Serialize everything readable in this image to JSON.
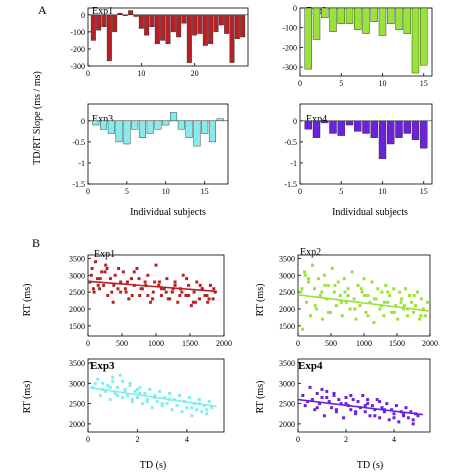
{
  "panel_labels": [
    "A",
    "B"
  ],
  "xlabels": {
    "A": "Individual subjects",
    "B": "TD (s)"
  },
  "ylabels": {
    "A": "TD/RT Slope (ms / ms)",
    "B": "RT (ms)"
  },
  "colors": {
    "Exp1": "#b82025",
    "Exp2": "#99e23a",
    "Exp3": "#88eaea",
    "Exp4": "#6a23d8"
  },
  "chart_data": [
    {
      "type": "bar",
      "panel": "A",
      "title": "Exp1",
      "color": "#b82025",
      "xlim": [
        0,
        30
      ],
      "ylim": [
        -300,
        40
      ],
      "xticks": [
        "0",
        "10",
        "20"
      ],
      "yticks": [
        "0",
        "-100",
        "-200",
        "-300"
      ],
      "x": [
        1,
        2,
        3,
        4,
        5,
        6,
        7,
        8,
        9,
        10,
        11,
        12,
        13,
        14,
        15,
        16,
        17,
        18,
        19,
        20,
        21,
        22,
        23,
        24,
        25,
        26,
        27,
        28,
        29
      ],
      "values": [
        -150,
        -90,
        -70,
        -270,
        -100,
        10,
        -5,
        25,
        -10,
        -80,
        -120,
        -70,
        -170,
        -150,
        -170,
        -100,
        -130,
        -50,
        -280,
        -120,
        -110,
        -180,
        -170,
        -100,
        -60,
        -110,
        -280,
        -140,
        -130
      ]
    },
    {
      "type": "bar",
      "panel": "A",
      "title": "Exp2",
      "color": "#99e23a",
      "xlim": [
        0,
        16
      ],
      "ylim": [
        -345,
        0
      ],
      "xticks": [
        "0",
        "5",
        "10",
        "15"
      ],
      "yticks": [
        "0",
        "-100",
        "-200",
        "-300"
      ],
      "x": [
        1,
        2,
        3,
        4,
        5,
        6,
        7,
        8,
        9,
        10,
        11,
        12,
        13,
        14,
        15
      ],
      "values": [
        -310,
        -160,
        -50,
        -120,
        -80,
        -80,
        -110,
        -130,
        -70,
        -140,
        -80,
        -110,
        -130,
        -330,
        -290
      ]
    },
    {
      "type": "bar",
      "panel": "A",
      "title": "Exp3",
      "color": "#88eaea",
      "xlim": [
        0,
        18
      ],
      "ylim": [
        -1.5,
        0.4
      ],
      "xticks": [
        "0",
        "5",
        "10",
        "15"
      ],
      "yticks": [
        "0",
        "-0.5",
        "-1",
        "-1.5"
      ],
      "x": [
        1,
        2,
        3,
        4,
        5,
        6,
        7,
        8,
        9,
        10,
        11,
        12,
        13,
        14,
        15,
        16,
        17
      ],
      "values": [
        -0.1,
        -0.2,
        -0.3,
        -0.5,
        -0.55,
        -0.2,
        -0.4,
        -0.3,
        -0.2,
        -0.1,
        0.2,
        -0.2,
        -0.4,
        -0.6,
        -0.3,
        -0.5,
        0.05
      ]
    },
    {
      "type": "bar",
      "panel": "A",
      "title": "Exp4",
      "color": "#6a23d8",
      "xlim": [
        0,
        16
      ],
      "ylim": [
        -1.5,
        0.4
      ],
      "xticks": [
        "0",
        "5",
        "10",
        "15"
      ],
      "yticks": [
        "0",
        "-0.5",
        "-1",
        "-1.5"
      ],
      "x": [
        1,
        2,
        3,
        4,
        5,
        6,
        7,
        8,
        9,
        10,
        11,
        12,
        13,
        14,
        15
      ],
      "values": [
        -0.2,
        -0.4,
        -0.05,
        -0.3,
        -0.35,
        -0.1,
        -0.25,
        -0.3,
        -0.4,
        -0.9,
        -0.55,
        -0.4,
        -0.3,
        -0.45,
        -0.65
      ]
    },
    {
      "type": "scatter",
      "panel": "B",
      "title": "Exp1",
      "color": "#b82025",
      "xlim": [
        0,
        2000
      ],
      "ylim": [
        1200,
        3600
      ],
      "xticks": [
        "0",
        "500",
        "1000",
        "1500",
        "2000"
      ],
      "yticks": [
        "1500",
        "2000",
        "2500",
        "3000",
        "3500"
      ],
      "x": [
        30,
        60,
        90,
        110,
        140,
        170,
        200,
        230,
        260,
        290,
        330,
        370,
        400,
        440,
        480,
        520,
        560,
        600,
        640,
        680,
        720,
        760,
        800,
        840,
        880,
        920,
        960,
        1000,
        1040,
        1080,
        1120,
        1160,
        1200,
        1240,
        1280,
        1320,
        1360,
        1400,
        1440,
        1480,
        1520,
        1560,
        1600,
        1640,
        1680,
        1720,
        1760,
        1800,
        1840,
        1870,
        50,
        150,
        250,
        350,
        450,
        550,
        650,
        750,
        850,
        950,
        1050,
        1150,
        1250,
        1350,
        1450,
        1550,
        1650,
        1750,
        1850,
        80,
        180,
        280,
        380,
        480,
        580,
        680,
        780,
        880,
        980,
        1080,
        1180,
        1280,
        1380,
        1480,
        1580,
        1680,
        1780
      ],
      "y": [
        2800,
        3200,
        2500,
        3400,
        2900,
        2600,
        3100,
        2700,
        3300,
        2400,
        2900,
        2200,
        3000,
        2600,
        2800,
        3100,
        2500,
        2300,
        2900,
        2700,
        3200,
        2400,
        2600,
        2800,
        3000,
        2200,
        2500,
        3300,
        2700,
        2400,
        2600,
        2900,
        2300,
        2500,
        2800,
        2200,
        2600,
        3000,
        2400,
        2700,
        2100,
        2500,
        2800,
        2300,
        2600,
        2400,
        2200,
        2700,
        2300,
        2500,
        3000,
        2700,
        3100,
        2500,
        3200,
        2600,
        2400,
        2900,
        2700,
        2300,
        2800,
        2500,
        2600,
        2400,
        2900,
        2200,
        2700,
        2400,
        2600,
        2600,
        2900,
        3200,
        2700,
        2500,
        2800,
        3100,
        2600,
        2400,
        2800,
        2600,
        2300,
        2700,
        2500,
        2400,
        2200,
        2600,
        2300
      ],
      "fit": {
        "x": [
          0,
          1900
        ],
        "y": [
          2820,
          2520
        ]
      }
    },
    {
      "type": "scatter",
      "panel": "B",
      "title": "Exp2",
      "color": "#99e23a",
      "xlim": [
        0,
        2000
      ],
      "ylim": [
        1200,
        3600
      ],
      "xticks": [
        "0",
        "500",
        "1000",
        "1500",
        "2000"
      ],
      "yticks": [
        "1500",
        "2000",
        "2500",
        "3000",
        "3500"
      ],
      "x": [
        40,
        70,
        100,
        130,
        160,
        190,
        220,
        250,
        280,
        310,
        340,
        370,
        400,
        430,
        460,
        490,
        520,
        550,
        580,
        610,
        640,
        670,
        700,
        730,
        760,
        790,
        820,
        850,
        880,
        910,
        940,
        970,
        1000,
        1030,
        1060,
        1090,
        1120,
        1150,
        1180,
        1210,
        1240,
        1270,
        1300,
        1330,
        1360,
        1390,
        1420,
        1450,
        1480,
        1510,
        1540,
        1570,
        1600,
        1630,
        1660,
        1690,
        1720,
        1750,
        1780,
        1810,
        1840,
        1870,
        1900,
        1930,
        1960,
        60,
        160,
        260,
        360,
        460,
        560,
        660,
        760,
        860,
        960,
        1060,
        1160,
        1260,
        1360,
        1460,
        1560,
        1660,
        1760,
        1860,
        110,
        410,
        710,
        1010,
        1310,
        1610
      ],
      "y": [
        2500,
        1400,
        3100,
        2200,
        2800,
        1800,
        3300,
        2600,
        2000,
        2900,
        2400,
        1700,
        3000,
        2300,
        2700,
        1900,
        3200,
        2500,
        2100,
        2800,
        2400,
        1800,
        2900,
        2200,
        2600,
        2000,
        3100,
        2300,
        1700,
        2700,
        2100,
        2500,
        2900,
        1900,
        2400,
        2200,
        2800,
        1600,
        2300,
        2600,
        2000,
        2500,
        1800,
        2700,
        2200,
        2400,
        1900,
        2600,
        2100,
        1700,
        2500,
        2300,
        2000,
        2600,
        1800,
        2400,
        2200,
        1900,
        2100,
        2500,
        1700,
        2300,
        2000,
        1800,
        2200,
        2600,
        2900,
        2100,
        2500,
        1900,
        2700,
        2200,
        2400,
        2000,
        2600,
        1800,
        2300,
        2100,
        2500,
        1900,
        2200,
        2000,
        2400,
        1800,
        3000,
        2700,
        2500,
        2400,
        2200,
        2100
      ],
      "fit": {
        "x": [
          0,
          2000
        ],
        "y": [
          2420,
          1940
        ]
      }
    },
    {
      "type": "scatter",
      "panel": "B",
      "title": "Exp3",
      "color": "#88eaea",
      "xlim": [
        0,
        5.5
      ],
      "ylim": [
        1800,
        3600
      ],
      "xticks": [
        "0",
        "2",
        "4"
      ],
      "yticks": [
        "2000",
        "2500",
        "3000",
        "3500"
      ],
      "x": [
        0.2,
        0.4,
        0.5,
        0.6,
        0.7,
        0.8,
        0.9,
        1.0,
        1.1,
        1.2,
        1.3,
        1.4,
        1.5,
        1.6,
        1.7,
        1.8,
        1.9,
        2.0,
        2.1,
        2.2,
        2.3,
        2.4,
        2.5,
        2.6,
        2.7,
        2.8,
        2.9,
        3.0,
        3.1,
        3.2,
        3.3,
        3.4,
        3.5,
        3.6,
        3.7,
        3.8,
        3.9,
        4.0,
        4.1,
        4.2,
        4.3,
        4.4,
        4.5,
        4.6,
        4.7,
        4.8,
        4.9,
        5.0,
        0.3,
        0.6,
        0.9,
        1.2,
        1.5,
        1.8,
        2.1,
        2.4,
        2.7,
        3.0,
        3.3,
        3.6,
        3.9,
        4.2,
        4.5,
        4.8,
        1.0,
        1.4,
        1.7,
        2.0
      ],
      "y": [
        2900,
        3100,
        2700,
        3000,
        2800,
        2950,
        2600,
        3050,
        2750,
        2900,
        3200,
        2650,
        2850,
        2700,
        3000,
        2550,
        2800,
        2650,
        2900,
        2500,
        2750,
        2600,
        2850,
        2400,
        2700,
        2550,
        2800,
        2450,
        2650,
        2500,
        2750,
        2350,
        2600,
        2450,
        2700,
        2300,
        2550,
        2400,
        2650,
        2200,
        2500,
        2350,
        2600,
        2300,
        2450,
        2250,
        2550,
        2400,
        3000,
        2850,
        2900,
        2700,
        2800,
        2600,
        2750,
        2550,
        2650,
        2500,
        2600,
        2450,
        2550,
        2400,
        2500,
        2350,
        3150,
        3050,
        2950,
        2850
      ],
      "fit": {
        "x": [
          0,
          5.2
        ],
        "y": [
          2900,
          2430
        ]
      }
    },
    {
      "type": "scatter",
      "panel": "B",
      "title": "Exp4",
      "color": "#6a23d8",
      "xlim": [
        0,
        5.5
      ],
      "ylim": [
        1800,
        3600
      ],
      "xticks": [
        "0",
        "2",
        "4"
      ],
      "yticks": [
        "2000",
        "2500",
        "3000",
        "3500"
      ],
      "x": [
        0.2,
        0.3,
        0.5,
        0.6,
        0.7,
        0.8,
        0.9,
        1.0,
        1.1,
        1.2,
        1.3,
        1.4,
        1.5,
        1.6,
        1.7,
        1.8,
        1.9,
        2.0,
        2.1,
        2.2,
        2.3,
        2.4,
        2.5,
        2.6,
        2.7,
        2.8,
        2.9,
        3.0,
        3.1,
        3.2,
        3.3,
        3.4,
        3.5,
        3.6,
        3.7,
        3.8,
        3.9,
        4.0,
        4.1,
        4.2,
        4.3,
        4.4,
        4.5,
        4.6,
        4.7,
        4.8,
        4.9,
        5.0,
        0.4,
        0.8,
        1.2,
        1.6,
        2.0,
        2.4,
        2.8,
        3.2,
        3.6,
        4.0,
        4.4,
        4.8,
        1.0,
        1.5,
        2.2,
        2.9,
        3.4
      ],
      "y": [
        2700,
        2450,
        2900,
        2600,
        2350,
        2750,
        2500,
        2650,
        2200,
        2800,
        2550,
        2400,
        2700,
        2300,
        2600,
        2500,
        2150,
        2650,
        2450,
        2350,
        2600,
        2250,
        2550,
        2400,
        2700,
        2300,
        2500,
        2200,
        2450,
        2350,
        2600,
        2150,
        2400,
        2300,
        2500,
        2100,
        2350,
        2250,
        2450,
        2050,
        2300,
        2200,
        2400,
        2150,
        2300,
        2000,
        2250,
        2200,
        2550,
        2400,
        2650,
        2350,
        2500,
        2300,
        2450,
        2200,
        2350,
        2150,
        2250,
        2100,
        2850,
        2750,
        2700,
        2600,
        2550
      ],
      "fit": {
        "x": [
          0,
          5.2
        ],
        "y": [
          2600,
          2230
        ]
      }
    }
  ]
}
